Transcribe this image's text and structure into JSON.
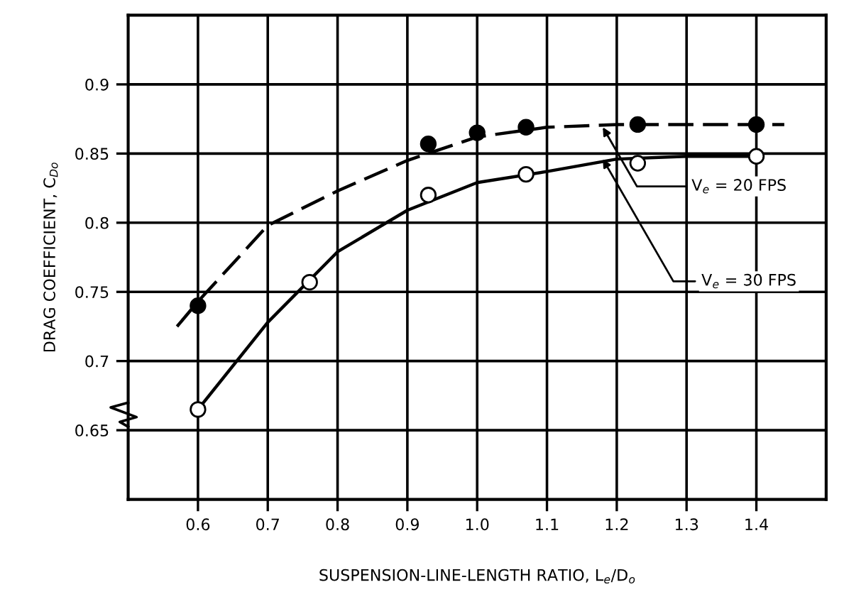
{
  "chart_data": {
    "type": "scatter",
    "xlabel": "SUSPENSION-LINE-LENGTH RATIO, L$_{e}$/D$_{o}$",
    "ylabel": "DRAG COEFFICIENT, C$_{Do}$",
    "series": [
      {
        "type": "line",
        "color": "#000000",
        "line_style": "dashed",
        "marker": "none",
        "x": [
          0.57,
          0.6,
          0.7,
          0.8,
          0.9,
          1.0,
          1.1,
          1.2,
          1.3,
          1.44
        ],
        "values": [
          0.725,
          0.743,
          0.798,
          0.823,
          0.845,
          0.862,
          0.869,
          0.871,
          0.871,
          0.871
        ]
      },
      {
        "type": "line",
        "color": "#000000",
        "line_style": "solid",
        "marker": "none",
        "x": [
          0.6,
          0.7,
          0.8,
          0.9,
          1.0,
          1.1,
          1.2,
          1.3,
          1.4
        ],
        "values": [
          0.665,
          0.728,
          0.779,
          0.809,
          0.829,
          0.837,
          0.846,
          0.848,
          0.848
        ]
      },
      {
        "color": "#000000",
        "marker": "circle",
        "x": [
          0.6,
          0.93,
          1.0,
          1.07,
          1.23,
          1.4
        ],
        "values": [
          0.74,
          0.857,
          0.865,
          0.869,
          0.871,
          0.871
        ]
      },
      {
        "color": "#ffffff",
        "marker": "circle",
        "x": [
          0.6,
          0.76,
          0.93,
          1.07,
          1.23,
          1.4
        ],
        "values": [
          0.665,
          0.757,
          0.82,
          0.835,
          0.843,
          0.848
        ]
      }
    ],
    "annotations": [
      {
        "text": "V$_{e}$ = 20 FPS",
        "x": 1.18,
        "y": 0.869
      },
      {
        "text": "V$_{e}$ = 30 FPS",
        "x": 1.18,
        "y": 0.846
      }
    ],
    "xlim": [
      0.5,
      1.5
    ],
    "ylim": [
      0.6,
      0.95
    ],
    "xticks": [
      0.6,
      0.7,
      0.8,
      0.9,
      {
        "value": 1.0,
        "label": "1.0"
      },
      1.1,
      1.2,
      1.3,
      1.4
    ],
    "yticks": [
      0.65,
      {
        "value": 0.7,
        "label": "0.7"
      },
      0.75,
      0.8,
      0.85,
      0.9
    ],
    "grid": true
  }
}
